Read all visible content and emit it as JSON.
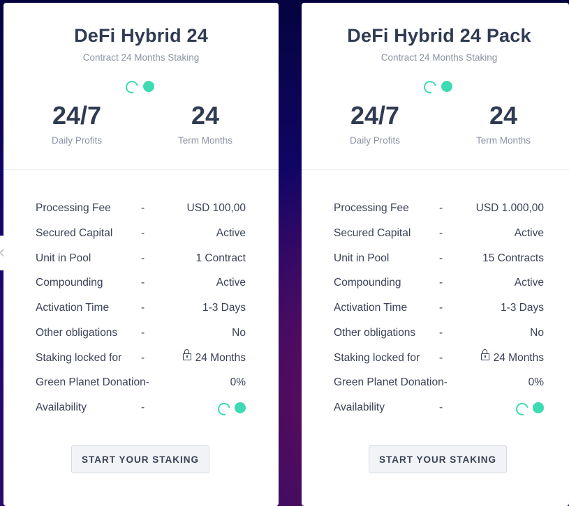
{
  "cards": [
    {
      "title": "DeFi Hybrid 24",
      "subtitle": "Contract 24 Months Staking",
      "stats": [
        {
          "value": "24/7",
          "label": "Daily Profits"
        },
        {
          "value": "24",
          "label": "Term Months"
        }
      ],
      "details": [
        {
          "label": "Processing Fee",
          "sep": "-",
          "value": "USD 100,00"
        },
        {
          "label": "Secured Capital",
          "sep": "-",
          "value": "Active"
        },
        {
          "label": "Unit in Pool",
          "sep": "-",
          "value": "1 Contract"
        },
        {
          "label": "Compounding",
          "sep": "-",
          "value": "Active"
        },
        {
          "label": "Activation Time",
          "sep": "-",
          "value": "1-3 Days"
        },
        {
          "label": "Other obligations",
          "sep": "-",
          "value": "No"
        },
        {
          "label": "Staking locked for",
          "sep": "-",
          "value": "24 Months"
        },
        {
          "label": "Green Planet Donation-",
          "sep": "",
          "value": "0%"
        },
        {
          "label": "Availability",
          "sep": "-",
          "value": ""
        }
      ],
      "button_label": "START YOUR STAKING"
    },
    {
      "title": "DeFi Hybrid 24 Pack",
      "subtitle": "Contract 24 Months Staking",
      "stats": [
        {
          "value": "24/7",
          "label": "Daily Profits"
        },
        {
          "value": "24",
          "label": "Term Months"
        }
      ],
      "details": [
        {
          "label": "Processing Fee",
          "sep": "-",
          "value": "USD 1.000,00"
        },
        {
          "label": "Secured Capital",
          "sep": "-",
          "value": "Active"
        },
        {
          "label": "Unit in Pool",
          "sep": "-",
          "value": "15 Contracts"
        },
        {
          "label": "Compounding",
          "sep": "-",
          "value": "Active"
        },
        {
          "label": "Activation Time",
          "sep": "-",
          "value": "1-3 Days"
        },
        {
          "label": "Other obligations",
          "sep": "-",
          "value": "No"
        },
        {
          "label": "Staking locked for",
          "sep": "-",
          "value": "24 Months"
        },
        {
          "label": "Green Planet Donation-",
          "sep": "",
          "value": "0%"
        },
        {
          "label": "Availability",
          "sep": "-",
          "value": ""
        }
      ],
      "button_label": "START YOUR STAKING"
    }
  ],
  "icons": {
    "prev": "chevron-left-icon",
    "lock": "lock-icon",
    "status": "status-indicator-icon"
  },
  "colors": {
    "accent": "#3ddbb1",
    "text_dark": "#2f3b52",
    "text_muted": "#8a93a3",
    "bg_top": "#05033f",
    "bg_glow": "#7a0f4d"
  }
}
